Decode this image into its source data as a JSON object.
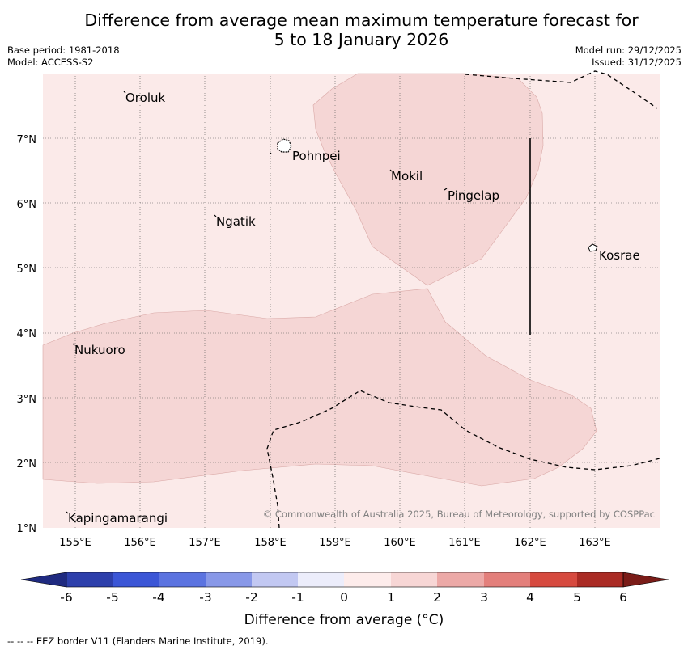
{
  "title": {
    "line1": "Difference from average mean maximum temperature forecast for",
    "line2": "5 to 18 January 2026"
  },
  "meta": {
    "base_period": "Base period: 1981-2018",
    "model": "Model: ACCESS-S2",
    "model_run": "Model run: 29/12/2025",
    "issued": "Issued: 31/12/2025"
  },
  "map": {
    "lon_range": [
      154.5,
      164.0
    ],
    "lat_range": [
      1.0,
      8.0
    ],
    "x_ticks": [
      "155°E",
      "156°E",
      "157°E",
      "158°E",
      "159°E",
      "160°E",
      "161°E",
      "162°E",
      "163°E"
    ],
    "y_ticks": [
      "1°N",
      "2°N",
      "3°N",
      "4°N",
      "5°N",
      "6°N",
      "7°N"
    ],
    "places": [
      {
        "name": "Oroluk",
        "lon": 155.75,
        "lat": 7.55
      },
      {
        "name": "Pohnpei",
        "lon": 158.35,
        "lat": 6.85
      },
      {
        "name": "Mokil",
        "lon": 159.85,
        "lat": 6.35
      },
      {
        "name": "Pingelap",
        "lon": 160.75,
        "lat": 6.15
      },
      {
        "name": "Ngatik",
        "lon": 157.15,
        "lat": 5.75
      },
      {
        "name": "Kosrae",
        "lon": 162.95,
        "lat": 5.25
      },
      {
        "name": "Nukuoro",
        "lon": 154.95,
        "lat": 3.8
      },
      {
        "name": "Kapingamarangi",
        "lon": 154.9,
        "lat": 1.22
      }
    ],
    "copyright": "© Commonwealth of Australia 2025, Bureau of Meteorology, supported by COSPPac",
    "colors": {
      "background_anomaly_0_1": "#fbeae9",
      "anomaly_1_2": "#f5d6d5",
      "eez_line": "#000000"
    }
  },
  "colorbar": {
    "ticks": [
      "-6",
      "-5",
      "-4",
      "-3",
      "-2",
      "-1",
      "0",
      "1",
      "2",
      "3",
      "4",
      "5",
      "6"
    ],
    "colors": [
      "#2d3fab",
      "#3b56d6",
      "#5b73e0",
      "#8898e8",
      "#c2c8f2",
      "#ecedfb",
      "#fdeceb",
      "#f7d6d5",
      "#eca9a7",
      "#e37f7b",
      "#d64a3f",
      "#aa2b24"
    ],
    "extend_low_color": "#1f2a80",
    "extend_high_color": "#7a1c18",
    "label": "Difference from average (°C)"
  },
  "legend": {
    "eez": "--  --  -- EEZ border V11 (Flanders Marine Institute, 2019)."
  }
}
